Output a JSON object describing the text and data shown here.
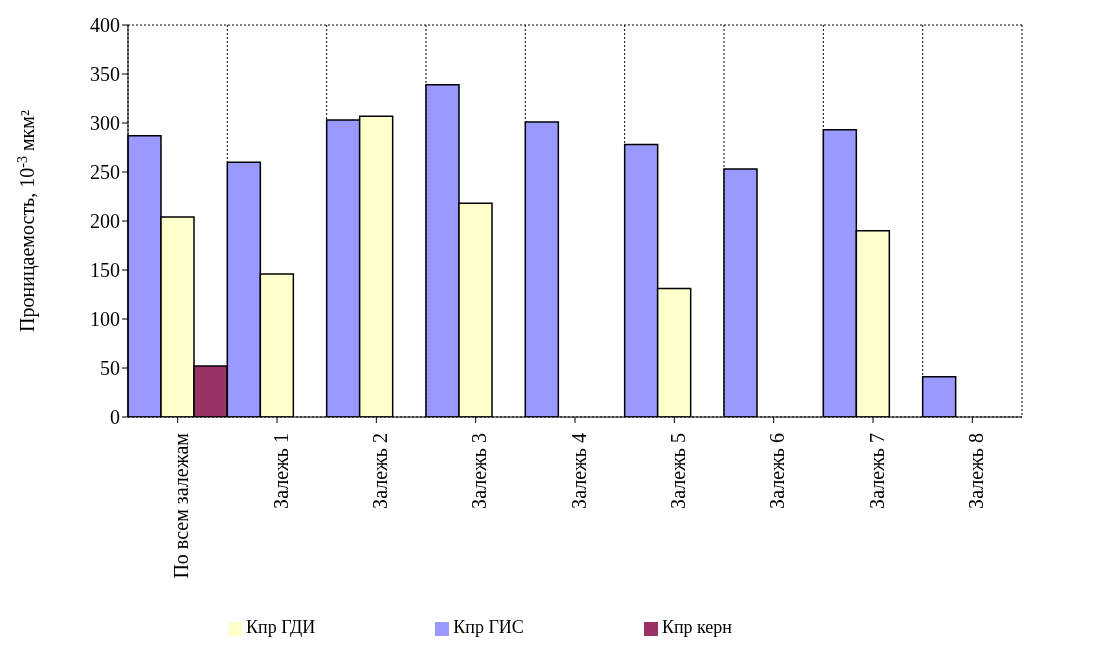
{
  "chart_data": {
    "type": "bar",
    "ylabel": "Проницаемость, 10$^{-3}$ мкм²",
    "categories": [
      "По всем залежам",
      "Залежь 1",
      "Залежь 2",
      "Залежь 3",
      "Залежь 4",
      "Залежь 5",
      "Залежь 6",
      "Залежь 7",
      "Залежь 8"
    ],
    "series": [
      {
        "name": "Кпр ГИС",
        "color": "#9999ff",
        "values": [
          287,
          260,
          303,
          339,
          301,
          278,
          253,
          293,
          41
        ]
      },
      {
        "name": "Кпр ГДИ",
        "color": "#ffffcc",
        "values": [
          204,
          146,
          307,
          218,
          null,
          131,
          null,
          190,
          null
        ]
      },
      {
        "name": "Кпр керн",
        "color": "#993366",
        "values": [
          52,
          null,
          null,
          null,
          null,
          null,
          null,
          null,
          null
        ]
      }
    ],
    "ylim": [
      0,
      400
    ],
    "yticks": [
      0,
      50,
      100,
      150,
      200,
      250,
      300,
      350,
      400
    ],
    "grid": true,
    "legend": "bottom"
  }
}
